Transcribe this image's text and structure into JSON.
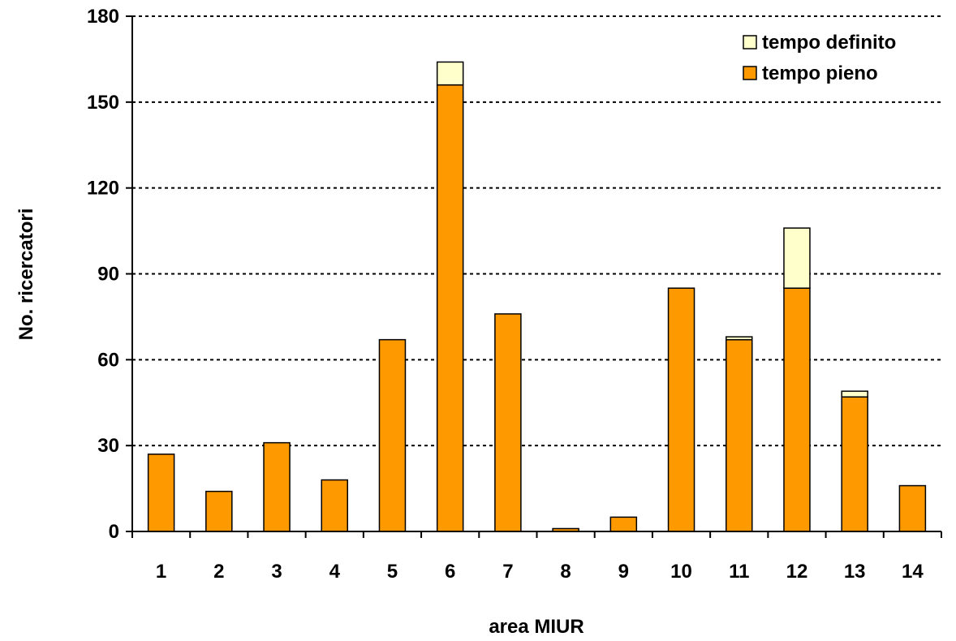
{
  "chart_data": {
    "type": "bar",
    "stacked": true,
    "categories": [
      "1",
      "2",
      "3",
      "4",
      "5",
      "6",
      "7",
      "8",
      "9",
      "10",
      "11",
      "12",
      "13",
      "14"
    ],
    "series": [
      {
        "name": "tempo pieno",
        "color": "#FF9900",
        "values": [
          27,
          14,
          31,
          18,
          67,
          156,
          76,
          1,
          5,
          85,
          67,
          85,
          47,
          16
        ]
      },
      {
        "name": "tempo definito",
        "color": "#FFFFCC",
        "values": [
          0,
          0,
          0,
          0,
          0,
          8,
          0,
          0,
          0,
          0,
          1,
          21,
          2,
          0
        ]
      }
    ],
    "xlabel": "area MIUR",
    "ylabel": "No. ricercatori",
    "ylim": [
      0,
      180
    ],
    "yticks": [
      "0",
      "30",
      "60",
      "90",
      "120",
      "150",
      "180"
    ],
    "grid": true,
    "legend": {
      "placement": "top-right",
      "order": [
        "tempo definito",
        "tempo pieno"
      ]
    }
  }
}
